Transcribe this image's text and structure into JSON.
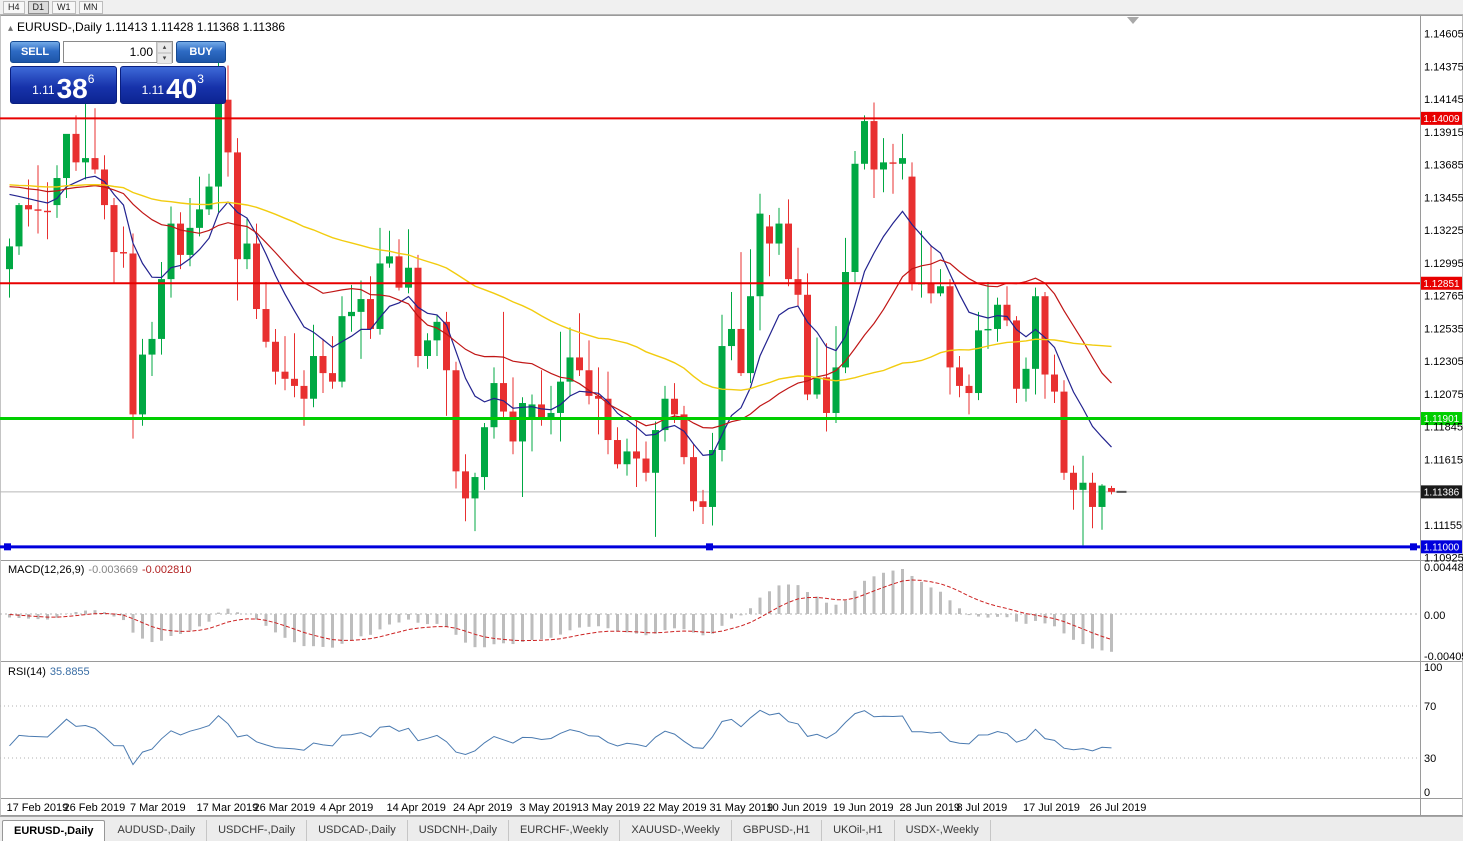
{
  "toolbar": {
    "timeframes": [
      "H4",
      "D1",
      "W1",
      "MN"
    ],
    "active_timeframe": "D1"
  },
  "chart_header": {
    "collapse_glyph": "▴",
    "symbol": "EURUSD-,Daily",
    "open": "1.11413",
    "high": "1.11428",
    "low": "1.11368",
    "close": "1.11386"
  },
  "one_click": {
    "sell_label": "SELL",
    "buy_label": "BUY",
    "volume": "1.00",
    "spin_up_glyph": "▴",
    "spin_down_glyph": "▾",
    "sell_price": {
      "big_prefix": "1.11",
      "pips": "38",
      "pipette": "6"
    },
    "buy_price": {
      "big_prefix": "1.11",
      "pips": "40",
      "pipette": "3"
    }
  },
  "chart_data": {
    "type": "candlestick",
    "symbol": "EURUSD",
    "timeframe": "Daily",
    "up_color": "#00a843",
    "down_color": "#e83030",
    "y_ticks": [
      "1.14605",
      "1.14375",
      "1.14145",
      "1.13915",
      "1.13685",
      "1.13455",
      "1.13225",
      "1.12995",
      "1.12765",
      "1.12535",
      "1.12305",
      "1.12075",
      "1.11845",
      "1.11615",
      "1.11155",
      "1.10925"
    ],
    "price_lines": [
      {
        "price": 1.14009,
        "label": "1.14009",
        "color": "#e80000",
        "width": 2,
        "handles": false
      },
      {
        "price": 1.12851,
        "label": "1.12851",
        "color": "#e80000",
        "width": 2,
        "handles": false
      },
      {
        "price": 1.11901,
        "label": "1.11901",
        "color": "#00ce00",
        "width": 3,
        "handles": false
      },
      {
        "price": 1.11,
        "label": "1.11000",
        "color": "#0000dc",
        "width": 3,
        "handles": true
      }
    ],
    "current_price": {
      "value": 1.11386,
      "label": "1.11386",
      "tag_color": "#1a1a1a"
    },
    "ma_lines": [
      {
        "name": "fast",
        "method": "ema",
        "period": 10,
        "color": "#23238f",
        "width": 1.2
      },
      {
        "name": "medium",
        "method": "sma",
        "period": 21,
        "color": "#c01616",
        "width": 1.2
      },
      {
        "name": "slow",
        "method": "sma",
        "period": 50,
        "color": "#f2cc0f",
        "width": 1.4
      }
    ],
    "date_labels": [
      {
        "text": "17 Feb 2019",
        "index": 0
      },
      {
        "text": "26 Feb 2019",
        "index": 6
      },
      {
        "text": "7 Mar 2019",
        "index": 13
      },
      {
        "text": "17 Mar 2019",
        "index": 20
      },
      {
        "text": "26 Mar 2019",
        "index": 26
      },
      {
        "text": "4 Apr 2019",
        "index": 33
      },
      {
        "text": "14 Apr 2019",
        "index": 40
      },
      {
        "text": "24 Apr 2019",
        "index": 47
      },
      {
        "text": "3 May 2019",
        "index": 54
      },
      {
        "text": "13 May 2019",
        "index": 60
      },
      {
        "text": "22 May 2019",
        "index": 67
      },
      {
        "text": "31 May 2019",
        "index": 74
      },
      {
        "text": "10 Jun 2019",
        "index": 80
      },
      {
        "text": "19 Jun 2019",
        "index": 87
      },
      {
        "text": "28 Jun 2019",
        "index": 94
      },
      {
        "text": "8 Jul 2019",
        "index": 100
      },
      {
        "text": "17 Jul 2019",
        "index": 107
      },
      {
        "text": "26 Jul 2019",
        "index": 114
      }
    ],
    "candles": [
      [
        1.1295,
        1.13165,
        1.1275,
        1.1311
      ],
      [
        1.1311,
        1.13415,
        1.1305,
        1.134
      ],
      [
        1.134,
        1.1358,
        1.1325,
        1.1337
      ],
      [
        1.1337,
        1.1368,
        1.132,
        1.1336
      ],
      [
        1.1336,
        1.1356,
        1.1316,
        1.1335
      ],
      [
        1.134,
        1.1368,
        1.1331,
        1.1359
      ],
      [
        1.1359,
        1.1388,
        1.1345,
        1.139
      ],
      [
        1.139,
        1.1403,
        1.1364,
        1.137
      ],
      [
        1.137,
        1.142,
        1.1358,
        1.1373
      ],
      [
        1.1373,
        1.1408,
        1.1362,
        1.1365
      ],
      [
        1.1365,
        1.1375,
        1.133,
        1.134
      ],
      [
        1.134,
        1.1345,
        1.1285,
        1.1307
      ],
      [
        1.1307,
        1.1325,
        1.1296,
        1.1306
      ],
      [
        1.1306,
        1.132,
        1.1176,
        1.1193
      ],
      [
        1.1193,
        1.1246,
        1.1185,
        1.1235
      ],
      [
        1.1235,
        1.1258,
        1.122,
        1.1246
      ],
      [
        1.1246,
        1.13,
        1.1235,
        1.1288
      ],
      [
        1.1288,
        1.1339,
        1.1275,
        1.1327
      ],
      [
        1.1327,
        1.1335,
        1.1295,
        1.1305
      ],
      [
        1.1305,
        1.1345,
        1.1297,
        1.1324
      ],
      [
        1.1324,
        1.136,
        1.1318,
        1.1337
      ],
      [
        1.1337,
        1.1362,
        1.1333,
        1.1353
      ],
      [
        1.1353,
        1.1448,
        1.1335,
        1.1414
      ],
      [
        1.1414,
        1.1438,
        1.136,
        1.1377
      ],
      [
        1.1377,
        1.1387,
        1.1273,
        1.1302
      ],
      [
        1.1302,
        1.1331,
        1.1295,
        1.1313
      ],
      [
        1.1313,
        1.1327,
        1.126,
        1.1267
      ],
      [
        1.1267,
        1.1286,
        1.124,
        1.1244
      ],
      [
        1.1244,
        1.1253,
        1.1214,
        1.1223
      ],
      [
        1.1223,
        1.1248,
        1.121,
        1.1218
      ],
      [
        1.1218,
        1.125,
        1.1205,
        1.1213
      ],
      [
        1.1213,
        1.1224,
        1.1185,
        1.1204
      ],
      [
        1.1204,
        1.1256,
        1.1198,
        1.1234
      ],
      [
        1.1234,
        1.1246,
        1.1208,
        1.1222
      ],
      [
        1.1222,
        1.1248,
        1.1211,
        1.1216
      ],
      [
        1.1216,
        1.1276,
        1.1212,
        1.1262
      ],
      [
        1.1262,
        1.1284,
        1.1251,
        1.1265
      ],
      [
        1.1265,
        1.1287,
        1.1232,
        1.1274
      ],
      [
        1.1274,
        1.129,
        1.1246,
        1.1253
      ],
      [
        1.1253,
        1.1324,
        1.1249,
        1.1299
      ],
      [
        1.1299,
        1.1322,
        1.1296,
        1.1304
      ],
      [
        1.1304,
        1.1316,
        1.128,
        1.1282
      ],
      [
        1.1282,
        1.1323,
        1.1278,
        1.1296
      ],
      [
        1.1296,
        1.1305,
        1.1226,
        1.1234
      ],
      [
        1.1234,
        1.125,
        1.1225,
        1.1245
      ],
      [
        1.1245,
        1.1263,
        1.1234,
        1.1258
      ],
      [
        1.1258,
        1.1265,
        1.1192,
        1.1224
      ],
      [
        1.1224,
        1.123,
        1.1141,
        1.1153
      ],
      [
        1.1153,
        1.1165,
        1.1118,
        1.1134
      ],
      [
        1.1134,
        1.1152,
        1.1111,
        1.1149
      ],
      [
        1.1149,
        1.1187,
        1.114,
        1.1184
      ],
      [
        1.1184,
        1.1226,
        1.1176,
        1.1215
      ],
      [
        1.1215,
        1.1265,
        1.1191,
        1.1195
      ],
      [
        1.1195,
        1.1219,
        1.1165,
        1.1174
      ],
      [
        1.1174,
        1.1205,
        1.1135,
        1.1201
      ],
      [
        1.119,
        1.1207,
        1.1167,
        1.12
      ],
      [
        1.12,
        1.1224,
        1.1185,
        1.119
      ],
      [
        1.119,
        1.1213,
        1.1179,
        1.1194
      ],
      [
        1.1194,
        1.1251,
        1.1174,
        1.1216
      ],
      [
        1.1216,
        1.1254,
        1.1206,
        1.1233
      ],
      [
        1.1233,
        1.1264,
        1.122,
        1.1224
      ],
      [
        1.1224,
        1.1245,
        1.12,
        1.1206
      ],
      [
        1.1206,
        1.1226,
        1.1179,
        1.1204
      ],
      [
        1.1204,
        1.1223,
        1.1165,
        1.1175
      ],
      [
        1.1175,
        1.1184,
        1.1155,
        1.1158
      ],
      [
        1.1158,
        1.1176,
        1.115,
        1.1167
      ],
      [
        1.1167,
        1.1188,
        1.1142,
        1.1162
      ],
      [
        1.1162,
        1.1174,
        1.1146,
        1.1152
      ],
      [
        1.1152,
        1.1188,
        1.1107,
        1.1182
      ],
      [
        1.1182,
        1.1213,
        1.1174,
        1.1204
      ],
      [
        1.1204,
        1.1215,
        1.1187,
        1.1193
      ],
      [
        1.1193,
        1.1199,
        1.1158,
        1.1163
      ],
      [
        1.1163,
        1.1172,
        1.1125,
        1.1132
      ],
      [
        1.1132,
        1.114,
        1.1116,
        1.1128
      ],
      [
        1.1128,
        1.118,
        1.1115,
        1.1168
      ],
      [
        1.1168,
        1.1263,
        1.116,
        1.1241
      ],
      [
        1.1241,
        1.1279,
        1.1231,
        1.1253
      ],
      [
        1.1253,
        1.1307,
        1.122,
        1.1222
      ],
      [
        1.1222,
        1.1309,
        1.1215,
        1.1276
      ],
      [
        1.1276,
        1.1348,
        1.1252,
        1.1334
      ],
      [
        1.1325,
        1.1333,
        1.129,
        1.1313
      ],
      [
        1.1313,
        1.1338,
        1.1305,
        1.1327
      ],
      [
        1.1327,
        1.1344,
        1.1283,
        1.1288
      ],
      [
        1.1288,
        1.131,
        1.1269,
        1.1277
      ],
      [
        1.1277,
        1.1292,
        1.1203,
        1.1207
      ],
      [
        1.1207,
        1.1247,
        1.1204,
        1.1219
      ],
      [
        1.1219,
        1.1243,
        1.1181,
        1.1194
      ],
      [
        1.1194,
        1.1255,
        1.1187,
        1.1226
      ],
      [
        1.1226,
        1.1317,
        1.1222,
        1.1293
      ],
      [
        1.1293,
        1.1378,
        1.1286,
        1.1369
      ],
      [
        1.1369,
        1.1403,
        1.1365,
        1.1399
      ],
      [
        1.1399,
        1.1412,
        1.1345,
        1.1365
      ],
      [
        1.1365,
        1.1387,
        1.1349,
        1.137
      ],
      [
        1.137,
        1.1383,
        1.1348,
        1.1369
      ],
      [
        1.1369,
        1.139,
        1.1358,
        1.1373
      ],
      [
        1.136,
        1.137,
        1.128,
        1.1285
      ],
      [
        1.1285,
        1.1322,
        1.1275,
        1.1285
      ],
      [
        1.1285,
        1.1312,
        1.1271,
        1.1278
      ],
      [
        1.1278,
        1.1295,
        1.1276,
        1.1283
      ],
      [
        1.1283,
        1.1288,
        1.1207,
        1.1226
      ],
      [
        1.1226,
        1.1234,
        1.1205,
        1.1213
      ],
      [
        1.1213,
        1.1221,
        1.1193,
        1.1208
      ],
      [
        1.1208,
        1.1265,
        1.1203,
        1.1252
      ],
      [
        1.1252,
        1.1286,
        1.1239,
        1.1253
      ],
      [
        1.1253,
        1.1275,
        1.1244,
        1.127
      ],
      [
        1.127,
        1.1283,
        1.1255,
        1.1259
      ],
      [
        1.1259,
        1.1262,
        1.1201,
        1.1211
      ],
      [
        1.1211,
        1.1233,
        1.1202,
        1.1225
      ],
      [
        1.1225,
        1.1282,
        1.1207,
        1.1276
      ],
      [
        1.1276,
        1.1279,
        1.1204,
        1.1221
      ],
      [
        1.1221,
        1.1235,
        1.1201,
        1.1209
      ],
      [
        1.1209,
        1.1217,
        1.1147,
        1.1152
      ],
      [
        1.1152,
        1.1157,
        1.1126,
        1.114
      ],
      [
        1.114,
        1.1164,
        1.1101,
        1.1145
      ],
      [
        1.1145,
        1.1152,
        1.1113,
        1.1128
      ],
      [
        1.1128,
        1.1144,
        1.1112,
        1.1143
      ],
      [
        1.11413,
        1.11428,
        1.11368,
        1.11386
      ]
    ]
  },
  "macd_pane": {
    "label": "MACD(12,26,9)",
    "value_main": "-0.003669",
    "value_signal": "-0.002810",
    "params": {
      "fast": 12,
      "slow": 26,
      "signal": 9
    },
    "axis_labels": [
      "0.004482",
      "0.00",
      "-0.004057"
    ],
    "histogram_color": "#bdbdbd",
    "signal_color": "#cc2222"
  },
  "rsi_pane": {
    "label": "RSI(14)",
    "value": "35.8855",
    "period": 14,
    "axis_labels": [
      "100",
      "70",
      "30",
      "0"
    ],
    "levels": [
      70,
      30
    ],
    "line_color": "#4a7ab0"
  },
  "tabs": [
    {
      "label": "EURUSD-,Daily",
      "active": true
    },
    {
      "label": "AUDUSD-,Daily",
      "active": false
    },
    {
      "label": "USDCHF-,Daily",
      "active": false
    },
    {
      "label": "USDCAD-,Daily",
      "active": false
    },
    {
      "label": "USDCNH-,Daily",
      "active": false
    },
    {
      "label": "EURCHF-,Weekly",
      "active": false
    },
    {
      "label": "XAUUSD-,Weekly",
      "active": false
    },
    {
      "label": "GBPUSD-,H1",
      "active": false
    },
    {
      "label": "UKOil-,H1",
      "active": false
    },
    {
      "label": "USDX-,Weekly",
      "active": false
    }
  ]
}
